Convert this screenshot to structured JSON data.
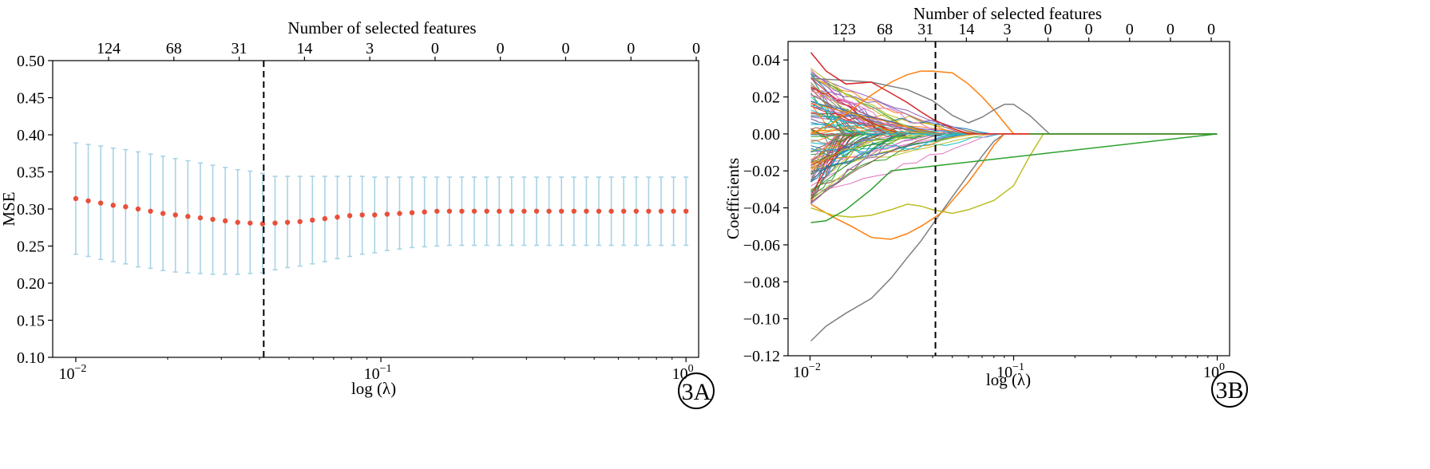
{
  "chart_data": [
    {
      "type": "scatter",
      "panel_label": "3A",
      "title": "",
      "top_axis_label": "Number of selected features",
      "top_tick_labels": [
        "124",
        "68",
        "31",
        "14",
        "3",
        "0",
        "0",
        "0",
        "0",
        "0"
      ],
      "xlabel": "log (λ)",
      "ylabel": "MSE",
      "x_scale": "log",
      "xlim": [
        0.0084,
        1.1
      ],
      "ylim": [
        0.1,
        0.5
      ],
      "x_ticks": [
        0.01,
        0.1,
        1
      ],
      "x_tick_labels": [
        {
          "base": "10",
          "exp": "−2"
        },
        {
          "base": "10",
          "exp": "−1"
        },
        {
          "base": "10",
          "exp": "0"
        }
      ],
      "y_ticks": [
        "0.10",
        "0.15",
        "0.20",
        "0.25",
        "0.30",
        "0.35",
        "0.40",
        "0.45",
        "0.50"
      ],
      "vline_x": 0.0413,
      "point_color": "#e8503a",
      "errorbar_color": "#a8d3e6",
      "points": {
        "lambda_log10_start": -2.0,
        "lambda_log10_end": 0.0,
        "mse": [
          0.314,
          0.311,
          0.308,
          0.305,
          0.303,
          0.3,
          0.297,
          0.294,
          0.292,
          0.29,
          0.288,
          0.286,
          0.284,
          0.282,
          0.281,
          0.28,
          0.281,
          0.282,
          0.283,
          0.285,
          0.287,
          0.289,
          0.291,
          0.292,
          0.292,
          0.293,
          0.294,
          0.295,
          0.296,
          0.297,
          0.297,
          0.297,
          0.297,
          0.297,
          0.297,
          0.297,
          0.297,
          0.297,
          0.297,
          0.297,
          0.297,
          0.297,
          0.297,
          0.297,
          0.297,
          0.297,
          0.297,
          0.297,
          0.297,
          0.297
        ],
        "upper": [
          0.389,
          0.387,
          0.385,
          0.382,
          0.38,
          0.377,
          0.374,
          0.371,
          0.368,
          0.365,
          0.362,
          0.359,
          0.356,
          0.353,
          0.351,
          0.348,
          0.344,
          0.344,
          0.344,
          0.344,
          0.344,
          0.344,
          0.344,
          0.344,
          0.343,
          0.343,
          0.343,
          0.343,
          0.343,
          0.343,
          0.343,
          0.343,
          0.343,
          0.343,
          0.343,
          0.343,
          0.343,
          0.343,
          0.343,
          0.343,
          0.343,
          0.343,
          0.343,
          0.343,
          0.343,
          0.343,
          0.343,
          0.343,
          0.343,
          0.343
        ],
        "lower": [
          0.239,
          0.236,
          0.232,
          0.229,
          0.226,
          0.222,
          0.22,
          0.217,
          0.215,
          0.214,
          0.213,
          0.212,
          0.212,
          0.212,
          0.213,
          0.214,
          0.218,
          0.221,
          0.223,
          0.226,
          0.229,
          0.233,
          0.236,
          0.239,
          0.241,
          0.244,
          0.246,
          0.248,
          0.249,
          0.25,
          0.251,
          0.251,
          0.251,
          0.251,
          0.251,
          0.251,
          0.251,
          0.251,
          0.251,
          0.251,
          0.251,
          0.251,
          0.251,
          0.251,
          0.251,
          0.251,
          0.251,
          0.251,
          0.251,
          0.251
        ]
      }
    },
    {
      "type": "line",
      "panel_label": "3B",
      "title": "",
      "top_axis_label": "Number of selected features",
      "top_tick_labels": [
        "123",
        "68",
        "31",
        "14",
        "3",
        "0",
        "0",
        "0",
        "0",
        "0"
      ],
      "xlabel": "log (λ)",
      "ylabel": "Coefficients",
      "x_scale": "log",
      "xlim": [
        0.0078,
        1.15
      ],
      "ylim": [
        -0.12,
        0.05
      ],
      "x_ticks": [
        0.01,
        0.1,
        1
      ],
      "x_tick_labels": [
        {
          "base": "10",
          "exp": "−2"
        },
        {
          "base": "10",
          "exp": "−1"
        },
        {
          "base": "10",
          "exp": "0"
        }
      ],
      "y_ticks": [
        "0.04",
        "0.02",
        "0.00",
        "−0.02",
        "−0.04",
        "−0.06",
        "−0.08",
        "−0.10",
        "−0.12"
      ],
      "vline_x": 0.0413,
      "series_colors": [
        "#1f77b4",
        "#ff7f0e",
        "#2ca02c",
        "#d62728",
        "#9467bd",
        "#8c564b",
        "#e377c2",
        "#7f7f7f",
        "#bcbd22",
        "#17becf"
      ],
      "highlight_paths": [
        {
          "color": "#7f7f7f",
          "x": [
            0.0101,
            0.012,
            0.015,
            0.02,
            0.025,
            0.03,
            0.035,
            0.04,
            0.045,
            0.05,
            0.06,
            0.07,
            0.08,
            0.09
          ],
          "y": [
            -0.112,
            -0.104,
            -0.097,
            -0.089,
            -0.078,
            -0.067,
            -0.058,
            -0.049,
            -0.041,
            -0.034,
            -0.022,
            -0.012,
            -0.004,
            0.0
          ]
        },
        {
          "color": "#ff7f0e",
          "x": [
            0.0101,
            0.013,
            0.016,
            0.02,
            0.025,
            0.03,
            0.035,
            0.04,
            0.045,
            0.05,
            0.06,
            0.07,
            0.08,
            0.09
          ],
          "y": [
            -0.038,
            -0.045,
            -0.05,
            -0.056,
            -0.057,
            -0.054,
            -0.05,
            -0.046,
            -0.042,
            -0.036,
            -0.026,
            -0.016,
            -0.006,
            0.0
          ]
        },
        {
          "color": "#bcbd22",
          "x": [
            0.0101,
            0.013,
            0.016,
            0.02,
            0.025,
            0.03,
            0.035,
            0.04,
            0.05,
            0.06,
            0.08,
            0.1,
            0.12,
            0.14
          ],
          "y": [
            -0.04,
            -0.044,
            -0.045,
            -0.044,
            -0.041,
            -0.038,
            -0.039,
            -0.041,
            -0.043,
            -0.041,
            -0.036,
            -0.028,
            -0.012,
            0.0
          ]
        },
        {
          "color": "#ff7f0e",
          "x": [
            0.0101,
            0.013,
            0.016,
            0.02,
            0.025,
            0.03,
            0.035,
            0.04,
            0.05,
            0.06,
            0.07,
            0.08,
            0.09,
            0.1
          ],
          "y": [
            0.0,
            0.006,
            0.013,
            0.021,
            0.028,
            0.032,
            0.034,
            0.034,
            0.033,
            0.027,
            0.02,
            0.013,
            0.006,
            0.0
          ]
        },
        {
          "color": "#7f7f7f",
          "x": [
            0.0101,
            0.015,
            0.02,
            0.03,
            0.04,
            0.05,
            0.06,
            0.07,
            0.08,
            0.09,
            0.1,
            0.12,
            0.15
          ],
          "y": [
            0.03,
            0.029,
            0.028,
            0.024,
            0.018,
            0.01,
            0.006,
            0.009,
            0.013,
            0.016,
            0.016,
            0.01,
            0.0
          ]
        },
        {
          "color": "#d62728",
          "x": [
            0.0101,
            0.012,
            0.015,
            0.02,
            0.025,
            0.03,
            0.035,
            0.04,
            0.05,
            0.06
          ],
          "y": [
            0.044,
            0.034,
            0.027,
            0.028,
            0.022,
            0.017,
            0.012,
            0.008,
            0.003,
            0.0
          ]
        },
        {
          "color": "#2ca02c",
          "x": [
            0.0101,
            0.012,
            0.015,
            0.02,
            0.025
          ],
          "y": [
            -0.048,
            -0.047,
            -0.041,
            -0.03,
            -0.02
          ]
        }
      ],
      "bundle": {
        "count": 110,
        "x_start": 0.0101,
        "x_end_range": [
          0.014,
          0.09
        ],
        "y_range": [
          -0.038,
          0.036
        ]
      }
    }
  ]
}
